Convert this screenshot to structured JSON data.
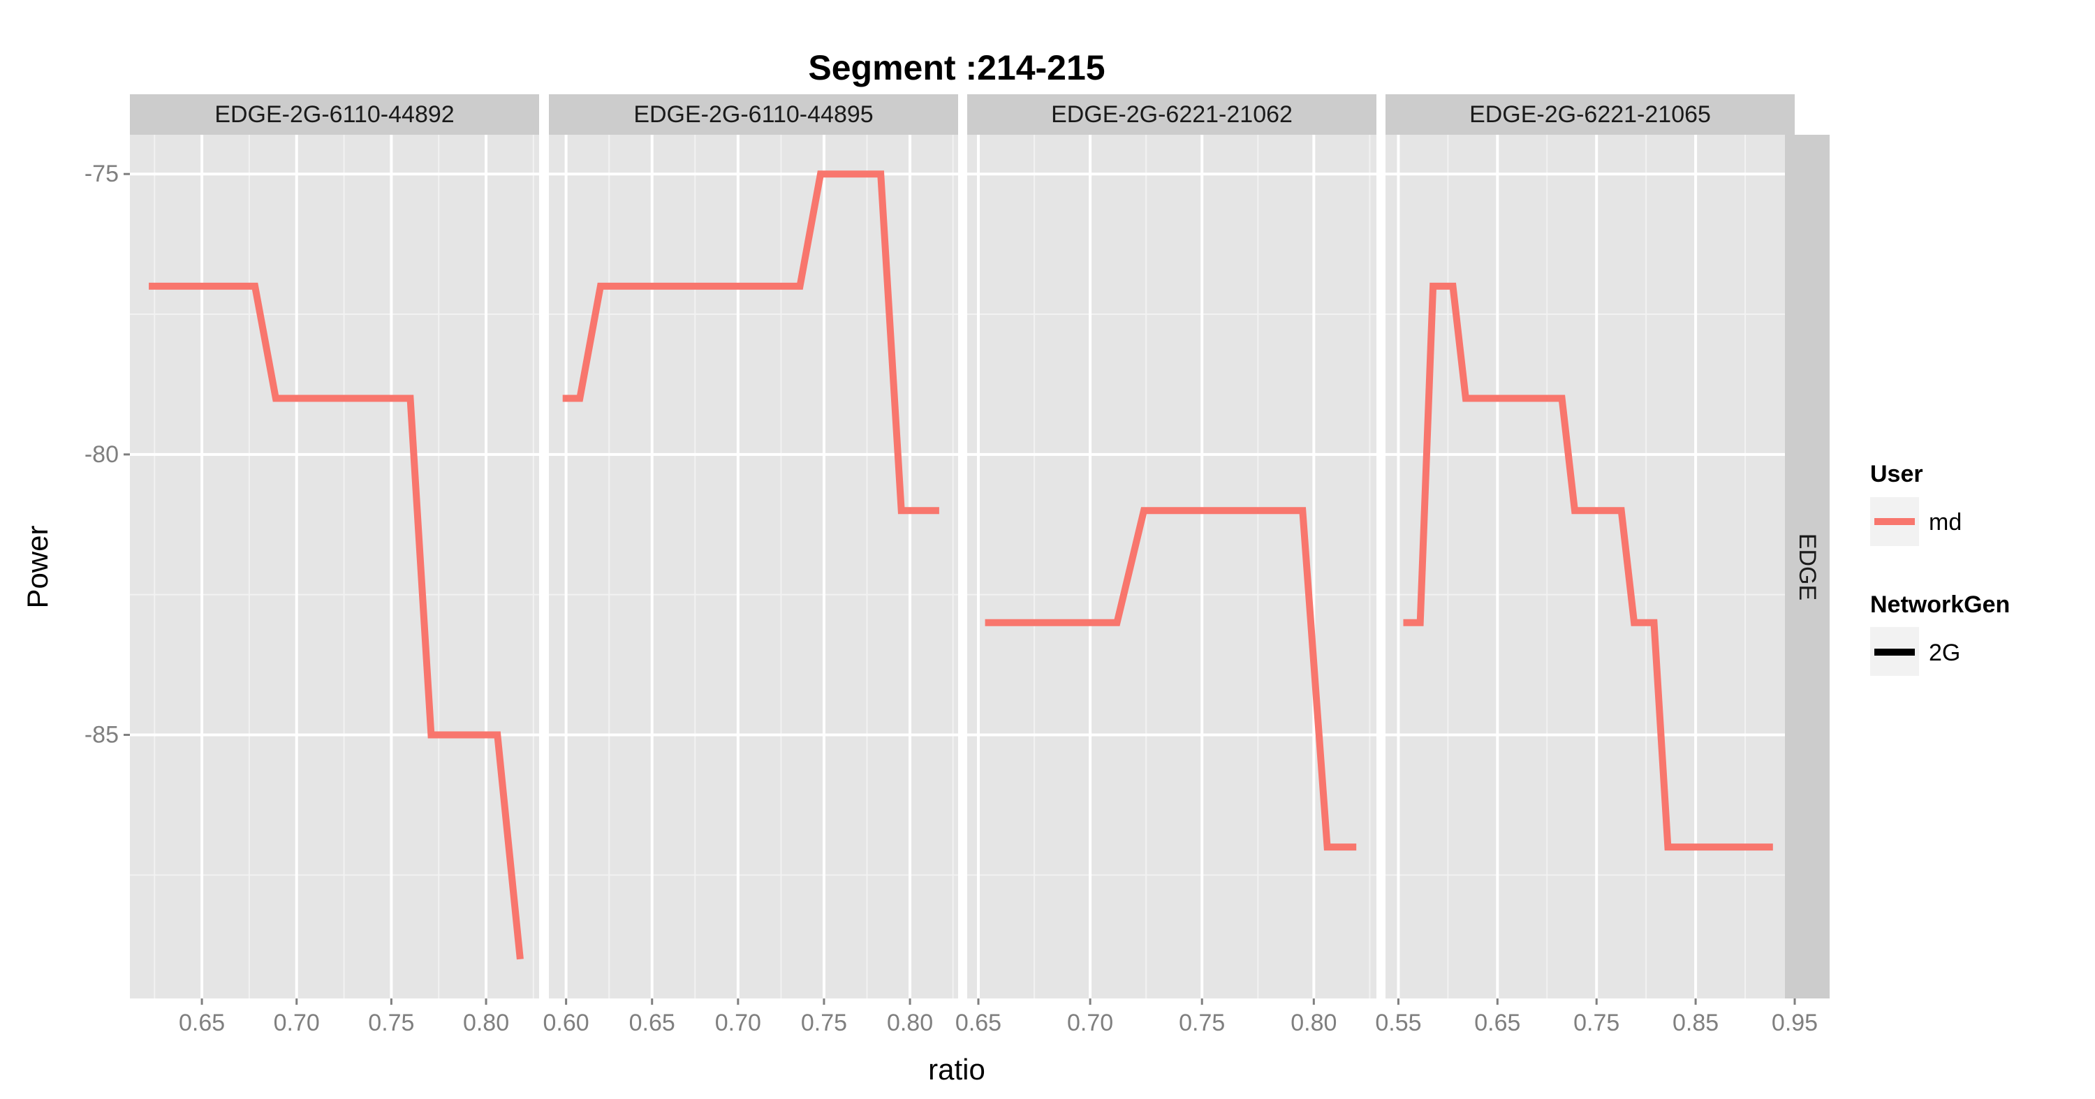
{
  "title": "Segment :214-215",
  "xlabel": "ratio",
  "ylabel": "Power",
  "row_strip": "EDGE",
  "legend": {
    "user_title": "User",
    "user_label": "md",
    "gen_title": "NetworkGen",
    "gen_label": "2G"
  },
  "colors": {
    "line": "#F8766D",
    "panel_bg": "#E5E5E5",
    "strip_bg": "#CCCCCC",
    "grid_major": "#FFFFFF",
    "grid_minor": "#F2F2F2",
    "tick_text": "#7F7F7F",
    "legend_key_bg": "#F2F2F2",
    "legend_gen_line": "#000000"
  },
  "chart_data": {
    "type": "line",
    "y_ticks": [
      -75,
      -80,
      -85
    ],
    "ylim": [
      -89.7,
      -74.3
    ],
    "panels": [
      {
        "label": "EDGE-2G-6110-44892",
        "xlim": [
          0.612,
          0.828
        ],
        "x_ticks": [
          0.65,
          0.7,
          0.75,
          0.8
        ],
        "x_tick_labels": [
          "0.65",
          "0.70",
          "0.75",
          "0.80"
        ],
        "x": [
          0.622,
          0.678,
          0.689,
          0.76,
          0.771,
          0.806,
          0.818
        ],
        "y": [
          -77,
          -77,
          -79,
          -79,
          -85,
          -85,
          -89
        ]
      },
      {
        "label": "EDGE-2G-6110-44895",
        "xlim": [
          0.59,
          0.828
        ],
        "x_ticks": [
          0.6,
          0.65,
          0.7,
          0.75,
          0.8
        ],
        "x_tick_labels": [
          "0.60",
          "0.65",
          "0.70",
          "0.75",
          "0.80"
        ],
        "x": [
          0.598,
          0.608,
          0.62,
          0.736,
          0.748,
          0.783,
          0.795,
          0.817
        ],
        "y": [
          -79,
          -79,
          -77,
          -77,
          -75,
          -75,
          -81,
          -81
        ]
      },
      {
        "label": "EDGE-2G-6221-21062",
        "xlim": [
          0.645,
          0.828
        ],
        "x_ticks": [
          0.65,
          0.7,
          0.75,
          0.8
        ],
        "x_tick_labels": [
          "0.65",
          "0.70",
          "0.75",
          "0.80"
        ],
        "x": [
          0.653,
          0.712,
          0.724,
          0.795,
          0.806,
          0.819
        ],
        "y": [
          -83,
          -83,
          -81,
          -81,
          -87,
          -87
        ]
      },
      {
        "label": "EDGE-2G-6221-21065",
        "xlim": [
          0.537,
          0.95
        ],
        "x_ticks": [
          0.55,
          0.65,
          0.75,
          0.85,
          0.95
        ],
        "x_tick_labels": [
          "0.55",
          "0.65",
          "0.75",
          "0.85",
          "0.95"
        ],
        "x": [
          0.555,
          0.572,
          0.585,
          0.605,
          0.618,
          0.715,
          0.728,
          0.775,
          0.788,
          0.808,
          0.822,
          0.928
        ],
        "y": [
          -83,
          -83,
          -77,
          -77,
          -79,
          -79,
          -81,
          -81,
          -83,
          -83,
          -87,
          -87
        ]
      }
    ]
  }
}
